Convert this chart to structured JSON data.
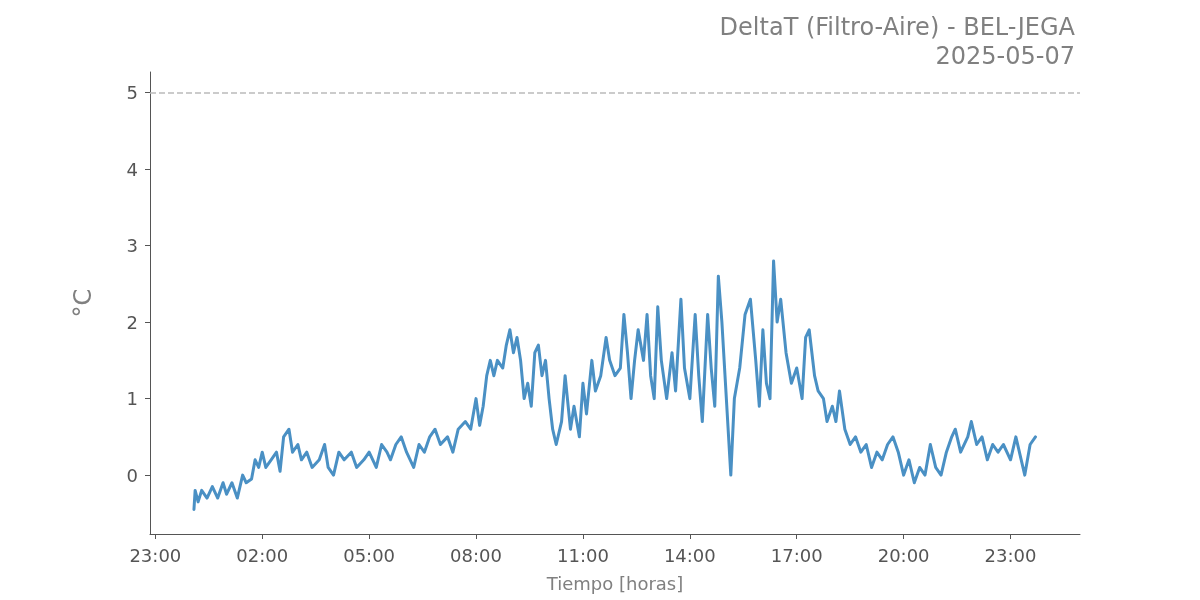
{
  "chart_data": {
    "type": "line",
    "title": "DeltaT (Filtro-Aire) - BEL-JEGA",
    "subtitle": "2025-05-07",
    "xlabel": "Tiempo [horas]",
    "ylabel": "°C",
    "series": [
      {
        "color": "#4a90c4",
        "x": [
          "2025-05-07T00:05",
          "2025-05-07T00:07",
          "2025-05-07T00:12",
          "2025-05-07T00:18",
          "2025-05-07T00:27",
          "2025-05-07T00:36",
          "2025-05-07T00:45",
          "2025-05-07T00:54",
          "2025-05-07T01:00",
          "2025-05-07T01:09",
          "2025-05-07T01:18",
          "2025-05-07T01:27",
          "2025-05-07T01:33",
          "2025-05-07T01:42",
          "2025-05-07T01:48",
          "2025-05-07T01:54",
          "2025-05-07T02:00",
          "2025-05-07T02:06",
          "2025-05-07T02:15",
          "2025-05-07T02:24",
          "2025-05-07T02:30",
          "2025-05-07T02:36",
          "2025-05-07T02:45",
          "2025-05-07T02:51",
          "2025-05-07T03:00",
          "2025-05-07T03:06",
          "2025-05-07T03:15",
          "2025-05-07T03:24",
          "2025-05-07T03:36",
          "2025-05-07T03:45",
          "2025-05-07T03:51",
          "2025-05-07T04:00",
          "2025-05-07T04:09",
          "2025-05-07T04:18",
          "2025-05-07T04:30",
          "2025-05-07T04:39",
          "2025-05-07T04:51",
          "2025-05-07T05:00",
          "2025-05-07T05:12",
          "2025-05-07T05:21",
          "2025-05-07T05:30",
          "2025-05-07T05:36",
          "2025-05-07T05:45",
          "2025-05-07T05:54",
          "2025-05-07T06:03",
          "2025-05-07T06:15",
          "2025-05-07T06:24",
          "2025-05-07T06:33",
          "2025-05-07T06:42",
          "2025-05-07T06:51",
          "2025-05-07T07:00",
          "2025-05-07T07:12",
          "2025-05-07T07:21",
          "2025-05-07T07:30",
          "2025-05-07T07:42",
          "2025-05-07T07:51",
          "2025-05-07T08:00",
          "2025-05-07T08:06",
          "2025-05-07T08:12",
          "2025-05-07T08:18",
          "2025-05-07T08:24",
          "2025-05-07T08:30",
          "2025-05-07T08:36",
          "2025-05-07T08:45",
          "2025-05-07T08:51",
          "2025-05-07T08:57",
          "2025-05-07T09:03",
          "2025-05-07T09:09",
          "2025-05-07T09:15",
          "2025-05-07T09:21",
          "2025-05-07T09:27",
          "2025-05-07T09:33",
          "2025-05-07T09:39",
          "2025-05-07T09:45",
          "2025-05-07T09:51",
          "2025-05-07T09:57",
          "2025-05-07T10:03",
          "2025-05-07T10:09",
          "2025-05-07T10:15",
          "2025-05-07T10:24",
          "2025-05-07T10:30",
          "2025-05-07T10:39",
          "2025-05-07T10:45",
          "2025-05-07T10:54",
          "2025-05-07T11:00",
          "2025-05-07T11:06",
          "2025-05-07T11:15",
          "2025-05-07T11:21",
          "2025-05-07T11:30",
          "2025-05-07T11:39",
          "2025-05-07T11:45",
          "2025-05-07T11:54",
          "2025-05-07T12:03",
          "2025-05-07T12:09",
          "2025-05-07T12:15",
          "2025-05-07T12:21",
          "2025-05-07T12:27",
          "2025-05-07T12:33",
          "2025-05-07T12:42",
          "2025-05-07T12:48",
          "2025-05-07T12:54",
          "2025-05-07T13:00",
          "2025-05-07T13:06",
          "2025-05-07T13:12",
          "2025-05-07T13:21",
          "2025-05-07T13:30",
          "2025-05-07T13:36",
          "2025-05-07T13:45",
          "2025-05-07T13:51",
          "2025-05-07T14:00",
          "2025-05-07T14:09",
          "2025-05-07T14:15",
          "2025-05-07T14:21",
          "2025-05-07T14:30",
          "2025-05-07T14:36",
          "2025-05-07T14:42",
          "2025-05-07T14:48",
          "2025-05-07T14:54",
          "2025-05-07T15:00",
          "2025-05-07T15:06",
          "2025-05-07T15:09",
          "2025-05-07T15:15",
          "2025-05-07T15:24",
          "2025-05-07T15:33",
          "2025-05-07T15:42",
          "2025-05-07T15:51",
          "2025-05-07T15:57",
          "2025-05-07T16:03",
          "2025-05-07T16:09",
          "2025-05-07T16:15",
          "2025-05-07T16:21",
          "2025-05-07T16:27",
          "2025-05-07T16:33",
          "2025-05-07T16:42",
          "2025-05-07T16:51",
          "2025-05-07T17:00",
          "2025-05-07T17:09",
          "2025-05-07T17:15",
          "2025-05-07T17:21",
          "2025-05-07T17:30",
          "2025-05-07T17:36",
          "2025-05-07T17:45",
          "2025-05-07T17:51",
          "2025-05-07T18:00",
          "2025-05-07T18:06",
          "2025-05-07T18:12",
          "2025-05-07T18:21",
          "2025-05-07T18:30",
          "2025-05-07T18:39",
          "2025-05-07T18:48",
          "2025-05-07T18:57",
          "2025-05-07T19:06",
          "2025-05-07T19:15",
          "2025-05-07T19:24",
          "2025-05-07T19:33",
          "2025-05-07T19:42",
          "2025-05-07T19:51",
          "2025-05-07T20:00",
          "2025-05-07T20:09",
          "2025-05-07T20:18",
          "2025-05-07T20:27",
          "2025-05-07T20:36",
          "2025-05-07T20:45",
          "2025-05-07T20:54",
          "2025-05-07T21:03",
          "2025-05-07T21:12",
          "2025-05-07T21:21",
          "2025-05-07T21:27",
          "2025-05-07T21:36",
          "2025-05-07T21:48",
          "2025-05-07T21:54",
          "2025-05-07T22:03",
          "2025-05-07T22:12",
          "2025-05-07T22:21",
          "2025-05-07T22:30",
          "2025-05-07T22:39",
          "2025-05-07T22:48",
          "2025-05-07T23:00",
          "2025-05-07T23:09",
          "2025-05-07T23:18",
          "2025-05-07T23:24",
          "2025-05-07T23:33",
          "2025-05-07T23:42"
        ],
        "values": [
          -0.45,
          -0.2,
          -0.35,
          -0.2,
          -0.3,
          -0.15,
          -0.3,
          -0.1,
          -0.25,
          -0.1,
          -0.3,
          0.0,
          -0.1,
          -0.05,
          0.2,
          0.1,
          0.3,
          0.1,
          0.2,
          0.3,
          0.05,
          0.5,
          0.6,
          0.3,
          0.4,
          0.2,
          0.3,
          0.1,
          0.2,
          0.4,
          0.1,
          0.0,
          0.3,
          0.2,
          0.3,
          0.1,
          0.2,
          0.3,
          0.1,
          0.4,
          0.3,
          0.2,
          0.4,
          0.5,
          0.3,
          0.1,
          0.4,
          0.3,
          0.5,
          0.6,
          0.4,
          0.5,
          0.3,
          0.6,
          0.7,
          0.6,
          1.0,
          0.65,
          0.9,
          1.3,
          1.5,
          1.3,
          1.5,
          1.4,
          1.7,
          1.9,
          1.6,
          1.8,
          1.5,
          1.0,
          1.2,
          0.9,
          1.6,
          1.7,
          1.3,
          1.5,
          1.0,
          0.6,
          0.4,
          0.7,
          1.3,
          0.6,
          0.9,
          0.5,
          1.2,
          0.8,
          1.5,
          1.1,
          1.3,
          1.8,
          1.5,
          1.3,
          1.4,
          2.1,
          1.6,
          1.0,
          1.5,
          1.9,
          1.5,
          2.1,
          1.3,
          1.0,
          2.2,
          1.5,
          1.0,
          1.6,
          1.1,
          2.3,
          1.4,
          1.0,
          2.1,
          1.3,
          0.7,
          2.1,
          1.4,
          0.9,
          2.6,
          2.0,
          1.2,
          0.4,
          0.0,
          1.0,
          1.4,
          2.1,
          2.3,
          1.5,
          0.9,
          1.9,
          1.2,
          1.0,
          2.8,
          2.0,
          2.3,
          1.6,
          1.2,
          1.4,
          1.0,
          1.8,
          1.9,
          1.3,
          1.1,
          1.0,
          0.7,
          0.9,
          0.7,
          1.1,
          0.6,
          0.4,
          0.5,
          0.3,
          0.4,
          0.1,
          0.3,
          0.2,
          0.4,
          0.5,
          0.3,
          0.0,
          0.2,
          -0.1,
          0.1,
          0.0,
          0.4,
          0.1,
          0.0,
          0.3,
          0.5,
          0.6,
          0.3,
          0.5,
          0.7,
          0.4,
          0.5,
          0.2,
          0.4,
          0.3,
          0.4,
          0.2,
          0.5,
          0.2,
          0.0,
          0.4,
          0.5
        ]
      }
    ],
    "xlim": [
      "2025-05-06T22:51",
      "2025-05-08T00:57"
    ],
    "xticks": [
      {
        "value": "2025-05-06T23:00",
        "label": "23:00"
      },
      {
        "value": "2025-05-07T02:00",
        "label": "02:00"
      },
      {
        "value": "2025-05-07T05:00",
        "label": "05:00"
      },
      {
        "value": "2025-05-07T08:00",
        "label": "08:00"
      },
      {
        "value": "2025-05-07T11:00",
        "label": "11:00"
      },
      {
        "value": "2025-05-07T14:00",
        "label": "14:00"
      },
      {
        "value": "2025-05-07T17:00",
        "label": "17:00"
      },
      {
        "value": "2025-05-07T20:00",
        "label": "20:00"
      },
      {
        "value": "2025-05-07T23:00",
        "label": "23:00"
      }
    ],
    "ylim": [
      -0.77,
      5.27
    ],
    "yticks": [
      0,
      1,
      2,
      3,
      4,
      5
    ],
    "ref_lines": [
      {
        "axis": "y",
        "value": 5,
        "color": "#bbbbbb",
        "line_style": "dashed"
      }
    ],
    "grid": false
  }
}
